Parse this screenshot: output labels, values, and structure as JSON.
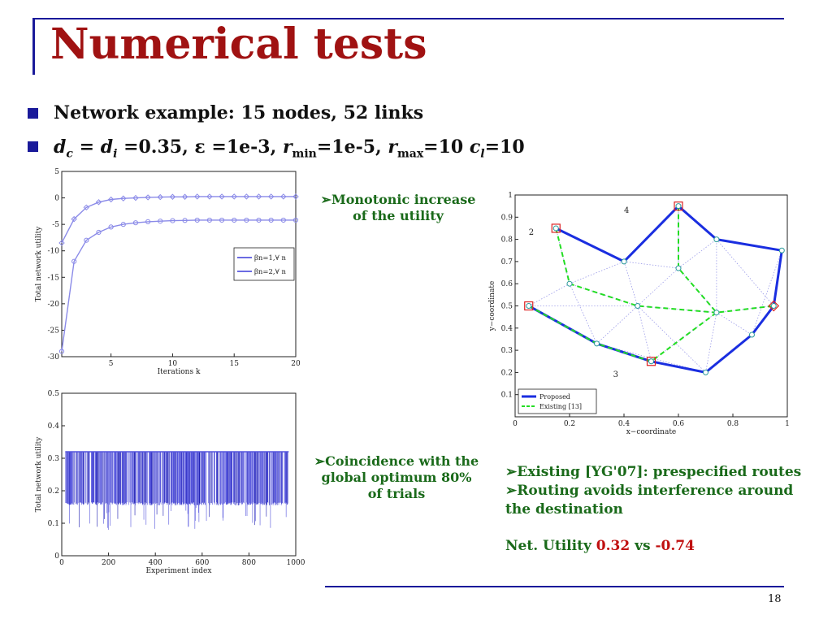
{
  "slide": {
    "title": "Numerical tests",
    "bullets": [
      {
        "text": "Network example: 15 nodes, 52 links"
      },
      {
        "parts": [
          "d",
          "c",
          " = ",
          "d",
          "i",
          " =0.35,  ε =1e-3, ",
          "r",
          "min",
          "=1e-5, ",
          "r",
          "max",
          "=10 ",
          "c",
          "l",
          "=10"
        ]
      }
    ],
    "notes": {
      "utility": [
        "➢Monotonic increase",
        "of the utility"
      ],
      "coincidence": [
        "➢Coincidence with the",
        "global  optimum 80%",
        "of trials"
      ],
      "existing": "➢Existing [YG'07]: prespecified routes",
      "routing_1": "➢Routing  avoids  interference  around",
      "routing_2": "the destination",
      "net_utility_label": "Net. Utility ",
      "net_utility_proposed": "0.32",
      "net_utility_vs": " vs ",
      "net_utility_existing": "-0.74"
    },
    "page_number": "18"
  },
  "chart_data": [
    {
      "type": "line",
      "xlabel": "Iterations k",
      "ylabel": "Total network utility",
      "xlim": [
        1,
        20
      ],
      "ylim": [
        -30,
        5
      ],
      "xticks": [
        5,
        10,
        15,
        20
      ],
      "yticks": [
        5,
        0,
        -5,
        -10,
        -15,
        -20,
        -25,
        -30
      ],
      "x": [
        1,
        2,
        3,
        4,
        5,
        6,
        7,
        8,
        9,
        10,
        11,
        12,
        13,
        14,
        15,
        16,
        17,
        18,
        19,
        20
      ],
      "series": [
        {
          "name": "βn=1,∀ n",
          "values": [
            -8.5,
            -4,
            -1.8,
            -0.8,
            -0.3,
            -0.1,
            0.0,
            0.1,
            0.15,
            0.2,
            0.2,
            0.25,
            0.25,
            0.25,
            0.25,
            0.25,
            0.25,
            0.25,
            0.25,
            0.25
          ]
        },
        {
          "name": "βn=2,∀ n",
          "values": [
            -29,
            -12,
            -8,
            -6.5,
            -5.5,
            -5,
            -4.7,
            -4.5,
            -4.4,
            -4.3,
            -4.25,
            -4.2,
            -4.2,
            -4.2,
            -4.2,
            -4.2,
            -4.2,
            -4.2,
            -4.2,
            -4.2
          ]
        }
      ],
      "legend": "right",
      "color": "#8a8ae8"
    },
    {
      "type": "bar",
      "xlabel": "Experiment index",
      "ylabel": "Total network utility",
      "xlim": [
        0,
        1000
      ],
      "ylim": [
        0,
        0.5
      ],
      "xticks": [
        0,
        200,
        400,
        600,
        800,
        1000
      ],
      "yticks": [
        0.5,
        0.4,
        0.3,
        0.2,
        0.1,
        0
      ],
      "optimum_value": 0.32,
      "typical_low": 0.155,
      "min_value": 0.08,
      "color": "#5555dd"
    },
    {
      "type": "scatter",
      "xlabel": "x−coordinate",
      "ylabel": "y−coordinate",
      "xlim": [
        0,
        1
      ],
      "ylim": [
        0,
        1
      ],
      "xticks": [
        0,
        0.2,
        0.4,
        0.6,
        0.8,
        1
      ],
      "yticks": [
        0.1,
        0.2,
        0.3,
        0.4,
        0.5,
        0.6,
        0.7,
        0.8,
        0.9,
        1
      ],
      "region_labels": [
        {
          "text": "2",
          "x": 0.05,
          "y": 0.82
        },
        {
          "text": "4",
          "x": 0.4,
          "y": 0.92
        },
        {
          "text": "3",
          "x": 0.36,
          "y": 0.18
        }
      ],
      "nodes": [
        {
          "x": 0.05,
          "y": 0.5
        },
        {
          "x": 0.15,
          "y": 0.85
        },
        {
          "x": 0.2,
          "y": 0.6
        },
        {
          "x": 0.3,
          "y": 0.33
        },
        {
          "x": 0.4,
          "y": 0.7
        },
        {
          "x": 0.45,
          "y": 0.5
        },
        {
          "x": 0.5,
          "y": 0.25
        },
        {
          "x": 0.6,
          "y": 0.95
        },
        {
          "x": 0.6,
          "y": 0.67
        },
        {
          "x": 0.7,
          "y": 0.2
        },
        {
          "x": 0.74,
          "y": 0.47
        },
        {
          "x": 0.74,
          "y": 0.8
        },
        {
          "x": 0.87,
          "y": 0.37
        },
        {
          "x": 0.95,
          "y": 0.5
        },
        {
          "x": 0.98,
          "y": 0.75
        }
      ],
      "sources": [
        {
          "x": 0.05,
          "y": 0.5
        },
        {
          "x": 0.15,
          "y": 0.85
        },
        {
          "x": 0.6,
          "y": 0.95
        },
        {
          "x": 0.5,
          "y": 0.25
        }
      ],
      "destination": {
        "x": 0.95,
        "y": 0.5
      },
      "routes": [
        {
          "name": "Proposed",
          "color": "#1a2ee0",
          "paths": [
            [
              [
                0.05,
                0.5
              ],
              [
                0.3,
                0.33
              ],
              [
                0.5,
                0.25
              ],
              [
                0.7,
                0.2
              ],
              [
                0.87,
                0.37
              ],
              [
                0.95,
                0.5
              ]
            ],
            [
              [
                0.15,
                0.85
              ],
              [
                0.4,
                0.7
              ],
              [
                0.6,
                0.95
              ],
              [
                0.74,
                0.8
              ],
              [
                0.98,
                0.75
              ],
              [
                0.95,
                0.5
              ]
            ]
          ]
        },
        {
          "name": "Existing [13]",
          "color": "#22dd22",
          "paths": [
            [
              [
                0.05,
                0.5
              ],
              [
                0.3,
                0.33
              ],
              [
                0.5,
                0.25
              ],
              [
                0.74,
                0.47
              ],
              [
                0.95,
                0.5
              ]
            ],
            [
              [
                0.15,
                0.85
              ],
              [
                0.2,
                0.6
              ],
              [
                0.45,
                0.5
              ],
              [
                0.74,
                0.47
              ]
            ],
            [
              [
                0.6,
                0.95
              ],
              [
                0.6,
                0.67
              ],
              [
                0.74,
                0.47
              ]
            ]
          ]
        }
      ],
      "legend": "bottom-left"
    }
  ]
}
